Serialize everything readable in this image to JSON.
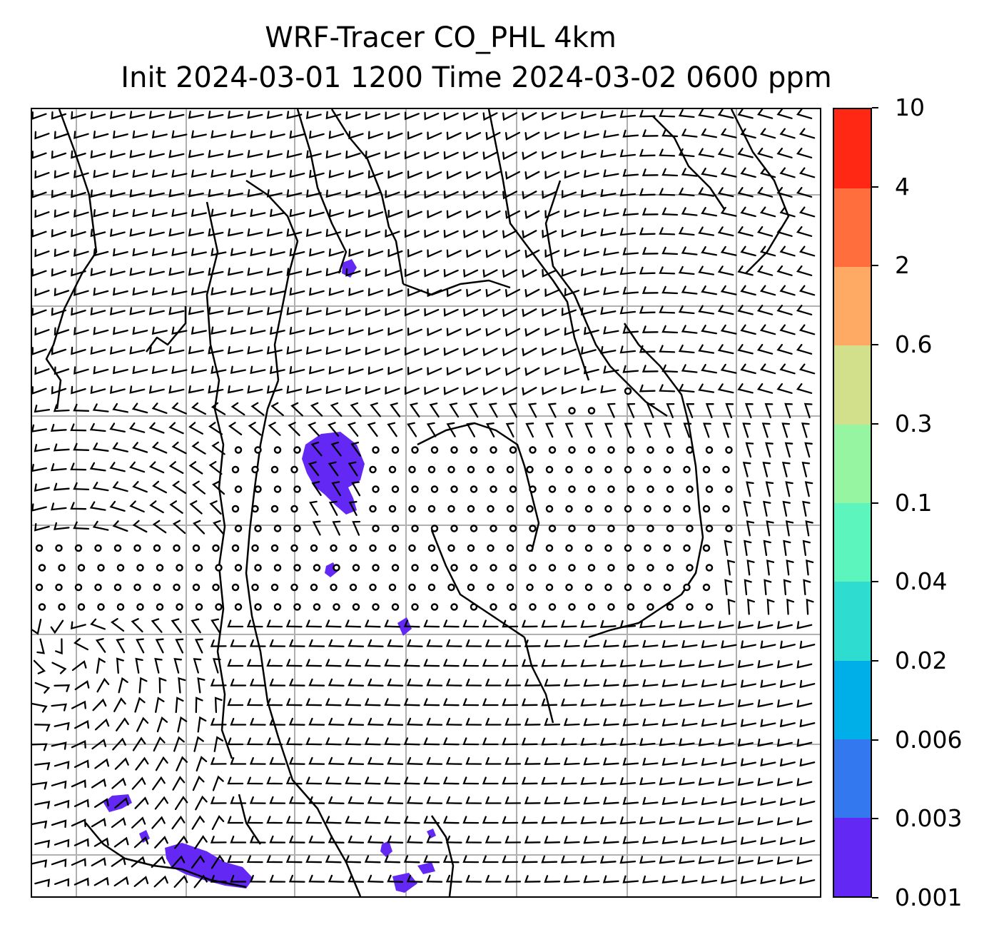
{
  "title": {
    "line1": "WRF-Tracer CO_PHL 4km",
    "line2": "Init 2024-03-01 1200 Time 2024-03-02 0600 ppm"
  },
  "colorbar": {
    "levels": [
      "0.001",
      "0.003",
      "0.006",
      "0.02",
      "0.04",
      "0.1",
      "0.3",
      "0.6",
      "2",
      "4",
      "10"
    ],
    "colors": [
      "#6428f5",
      "#3478f0",
      "#00aee8",
      "#2edcd0",
      "#5cf5be",
      "#96f5a0",
      "#d2e08c",
      "#ffaa64",
      "#ff6e3c",
      "#ff2814"
    ]
  },
  "map": {
    "gridlines": true,
    "features": [
      "coastlines",
      "wind barbs",
      "tracer concentration fill"
    ],
    "tracer_color": "#6428f5"
  }
}
